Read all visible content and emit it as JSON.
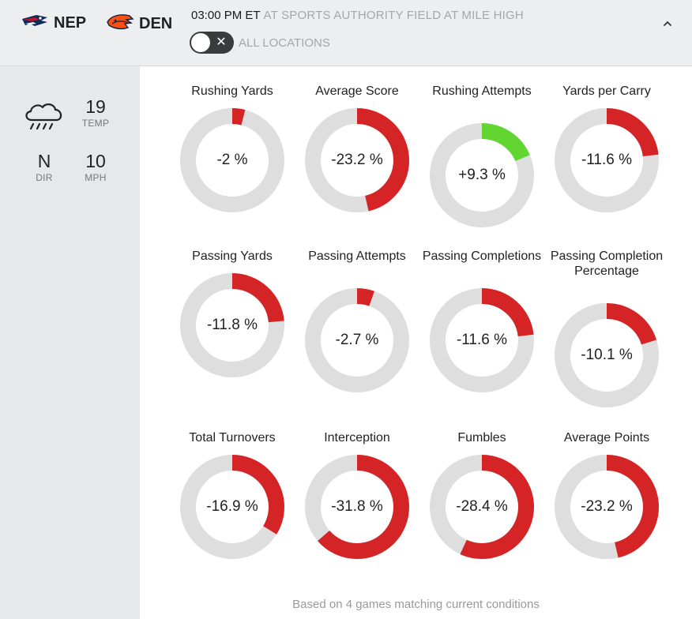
{
  "header": {
    "away": {
      "abbr": "NEP",
      "logo": "patriots-logo"
    },
    "home": {
      "abbr": "DEN",
      "logo": "broncos-logo"
    },
    "time": "03:00 PM ET",
    "venue": "AT  SPORTS AUTHORITY FIELD AT MILE HIGH",
    "toggle_label": "ALL LOCATIONS",
    "toggle_icon": "close-icon",
    "collapse_icon": "chevron-up-icon"
  },
  "weather": {
    "icon": "rain-cloud-icon",
    "temp": "19",
    "temp_label": "TEMP",
    "dir": "N",
    "dir_label": "DIR",
    "speed": "10",
    "speed_label": "MPH"
  },
  "colors": {
    "negative": "#d42425",
    "positive": "#62d530",
    "track": "#dedede"
  },
  "stats": [
    {
      "label": "Rushing Yards",
      "value": "-2 %",
      "pct": -2
    },
    {
      "label": "Average Score",
      "value": "-23.2 %",
      "pct": -23.2
    },
    {
      "label": "Rushing Attempts",
      "value": "+9.3 %",
      "pct": 9.3
    },
    {
      "label": "Yards per Carry",
      "value": "-11.6 %",
      "pct": -11.6
    },
    {
      "label": "Passing Yards",
      "value": "-11.8 %",
      "pct": -11.8
    },
    {
      "label": "Passing Attempts",
      "value": "-2.7 %",
      "pct": -2.7
    },
    {
      "label": "Passing Completions",
      "value": "-11.6 %",
      "pct": -11.6
    },
    {
      "label": "Passing Completion Percentage",
      "value": "-10.1 %",
      "pct": -10.1
    },
    {
      "label": "Total Turnovers",
      "value": "-16.9 %",
      "pct": -16.9
    },
    {
      "label": "Interception",
      "value": "-31.8 %",
      "pct": -31.8
    },
    {
      "label": "Fumbles",
      "value": "-28.4 %",
      "pct": -28.4
    },
    {
      "label": "Average Points",
      "value": "-23.2 %",
      "pct": -23.2
    }
  ],
  "footer": "Based on 4 games matching current conditions"
}
